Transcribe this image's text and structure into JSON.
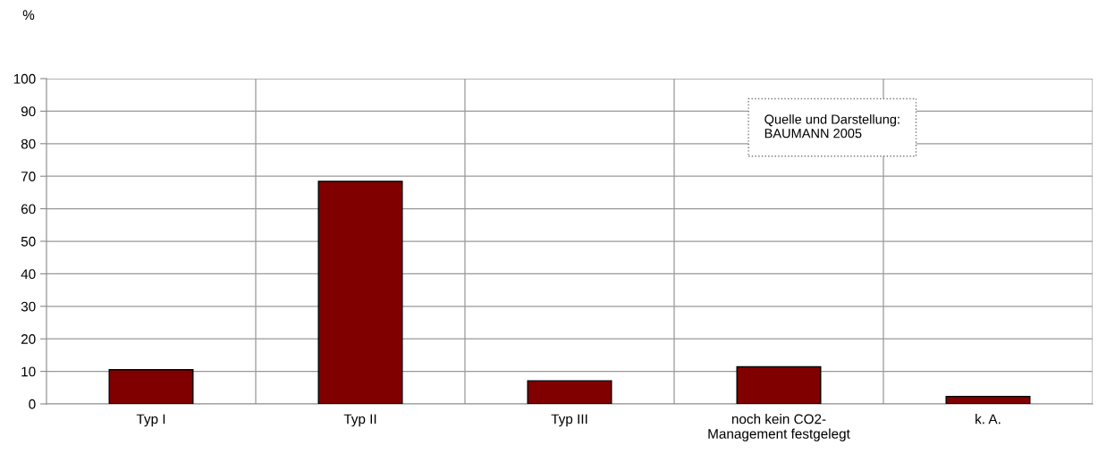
{
  "chart_data": {
    "type": "bar",
    "ylabel": "%",
    "categories": [
      "Typ I",
      "Typ II",
      "Typ III",
      "noch kein CO2-\nManagement festgelegt",
      "k. A."
    ],
    "values": [
      10.5,
      68.4,
      7.1,
      11.4,
      2.3
    ],
    "color": "#800000",
    "ylim": [
      0,
      100
    ],
    "yticks": [
      0,
      10,
      20,
      30,
      40,
      50,
      60,
      70,
      80,
      90,
      100
    ],
    "grid": true,
    "annotations": [
      "Quelle und Darstellung:\nBAUMANN 2005"
    ]
  }
}
